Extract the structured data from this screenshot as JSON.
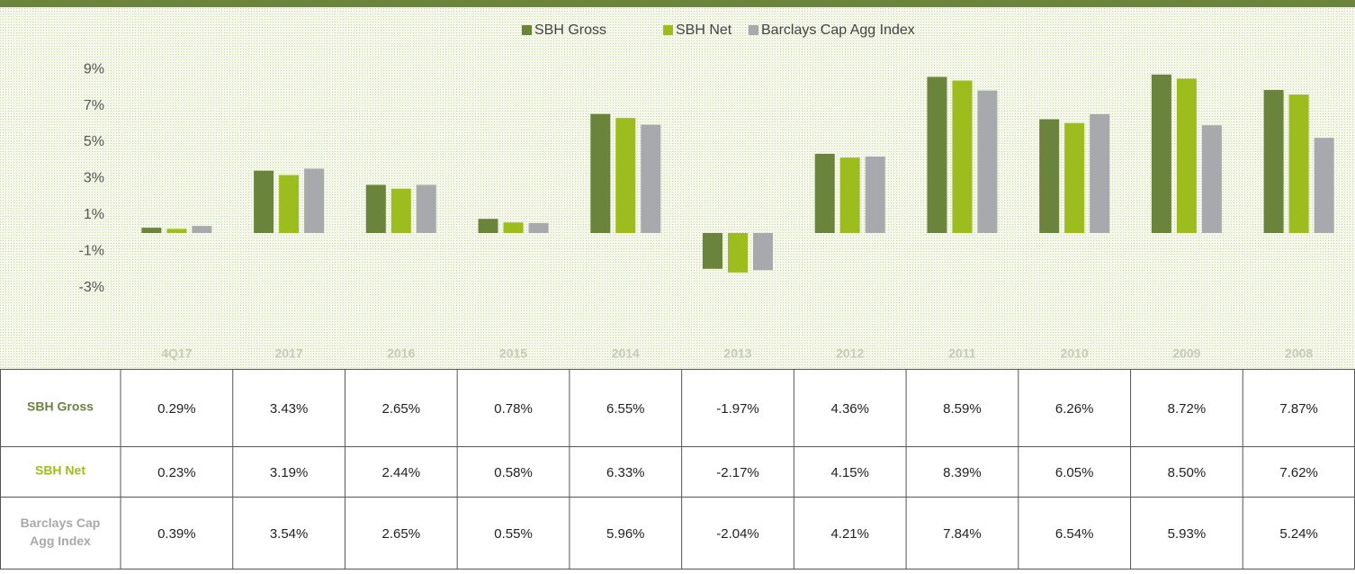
{
  "chart_data": {
    "type": "bar",
    "categories": [
      "4Q17",
      "2017",
      "2016",
      "2015",
      "2014",
      "2013",
      "2012",
      "2011",
      "2010",
      "2009",
      "2008"
    ],
    "series": [
      {
        "name": "SBH Gross",
        "color": "#6b843c",
        "values": [
          0.29,
          3.43,
          2.65,
          0.78,
          6.55,
          -1.97,
          4.36,
          8.59,
          6.26,
          8.72,
          7.87
        ],
        "value_labels": [
          "0.29%",
          "3.43%",
          "2.65%",
          "0.78%",
          "6.55%",
          "-1.97%",
          "4.36%",
          "8.59%",
          "6.26%",
          "8.72%",
          "7.87%"
        ]
      },
      {
        "name": "SBH Net",
        "color": "#9dbd1e",
        "values": [
          0.23,
          3.19,
          2.44,
          0.58,
          6.33,
          -2.17,
          4.15,
          8.39,
          6.05,
          8.5,
          7.62
        ],
        "value_labels": [
          "0.23%",
          "3.19%",
          "2.44%",
          "0.58%",
          "6.33%",
          "-2.17%",
          "4.15%",
          "8.39%",
          "6.05%",
          "8.50%",
          "7.62%"
        ]
      },
      {
        "name": "Barclays Cap Agg Index",
        "color": "#a7a9ac",
        "values": [
          0.39,
          3.54,
          2.65,
          0.55,
          5.96,
          -2.04,
          4.21,
          7.84,
          6.54,
          5.93,
          5.24
        ],
        "value_labels": [
          "0.39%",
          "3.54%",
          "2.65%",
          "0.55%",
          "5.96%",
          "-2.04%",
          "4.21%",
          "7.84%",
          "6.54%",
          "5.93%",
          "5.24%"
        ]
      }
    ],
    "ylim": [
      -5,
      10
    ],
    "yticks": [
      {
        "value": 9,
        "label": "9%"
      },
      {
        "value": 7,
        "label": "7%"
      },
      {
        "value": 5,
        "label": "5%"
      },
      {
        "value": 3,
        "label": "3%"
      },
      {
        "value": 1,
        "label": "1%"
      },
      {
        "value": -1,
        "label": "-1%"
      },
      {
        "value": -3,
        "label": "-3%"
      }
    ],
    "legend": "top"
  }
}
